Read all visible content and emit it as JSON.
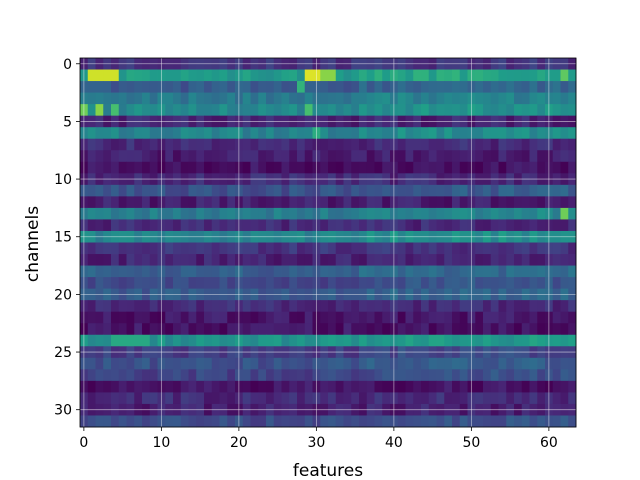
{
  "chart_data": {
    "type": "heatmap",
    "title": "",
    "xlabel": "features",
    "ylabel": "channels",
    "xlim": [
      -0.5,
      63.5
    ],
    "ylim": [
      31.5,
      -0.5
    ],
    "x_ticks": [
      0,
      10,
      20,
      30,
      40,
      50,
      60
    ],
    "y_ticks": [
      0,
      5,
      10,
      15,
      20,
      25,
      30
    ],
    "grid": true,
    "colormap": "viridis",
    "n_channels": 32,
    "n_features": 64,
    "row_base": [
      0.15,
      0.55,
      0.28,
      0.4,
      0.47,
      0.1,
      0.45,
      0.12,
      0.08,
      0.04,
      0.12,
      0.25,
      0.08,
      0.42,
      0.12,
      0.46,
      0.15,
      0.1,
      0.3,
      0.22,
      0.28,
      0.12,
      0.06,
      0.05,
      0.5,
      0.18,
      0.25,
      0.2,
      0.05,
      0.12,
      0.09,
      0.22
    ],
    "hot_spots": [
      {
        "channel": 1,
        "from": 1,
        "to": 4,
        "value": 0.93
      },
      {
        "channel": 1,
        "from": 29,
        "to": 30,
        "value": 0.95
      },
      {
        "channel": 1,
        "from": 31,
        "to": 32,
        "value": 0.82
      },
      {
        "channel": 1,
        "from": 62,
        "to": 62,
        "value": 0.75
      },
      {
        "channel": 2,
        "from": 28,
        "to": 28,
        "value": 0.65
      },
      {
        "channel": 4,
        "from": 0,
        "to": 0,
        "value": 0.78
      },
      {
        "channel": 4,
        "from": 2,
        "to": 2,
        "value": 0.82
      },
      {
        "channel": 4,
        "from": 4,
        "to": 4,
        "value": 0.7
      },
      {
        "channel": 4,
        "from": 29,
        "to": 29,
        "value": 0.7
      },
      {
        "channel": 6,
        "from": 30,
        "to": 30,
        "value": 0.62
      },
      {
        "channel": 13,
        "from": 62,
        "to": 62,
        "value": 0.78
      },
      {
        "channel": 24,
        "from": 4,
        "to": 8,
        "value": 0.6
      }
    ]
  }
}
